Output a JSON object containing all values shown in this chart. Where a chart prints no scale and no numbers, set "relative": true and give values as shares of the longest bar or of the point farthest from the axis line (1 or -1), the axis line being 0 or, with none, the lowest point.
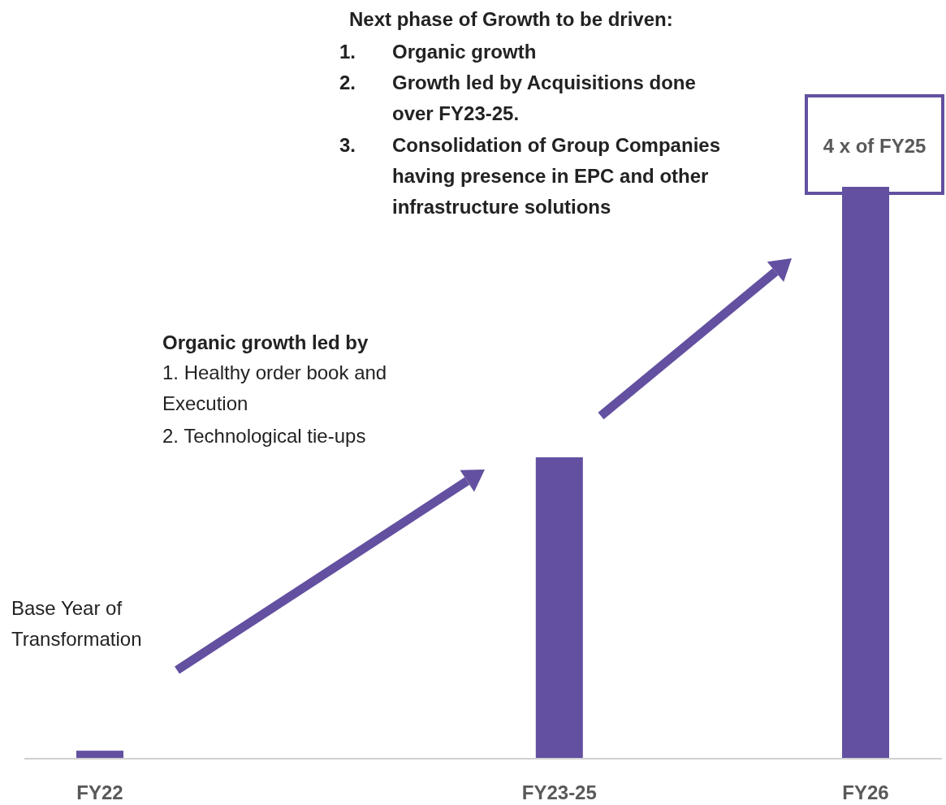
{
  "chart_data": {
    "type": "bar",
    "relative": true,
    "categories": [
      "FY22",
      "FY23-25",
      "FY26"
    ],
    "values": [
      0.014,
      0.527,
      1
    ],
    "color": "#6350a0",
    "annotations": [
      "Base Year of Transformation",
      "Organic growth led by",
      "1. Healthy order book and Execution",
      "2. Technological tie-ups",
      "Next phase of Growth to be driven:",
      "1. Organic growth",
      "2. Growth led by Acquisitions done over FY23-25.",
      "3. Consolidation of Group Companies having presence in EPC and other infrastructure solutions",
      "4 x of FY25"
    ]
  }
}
